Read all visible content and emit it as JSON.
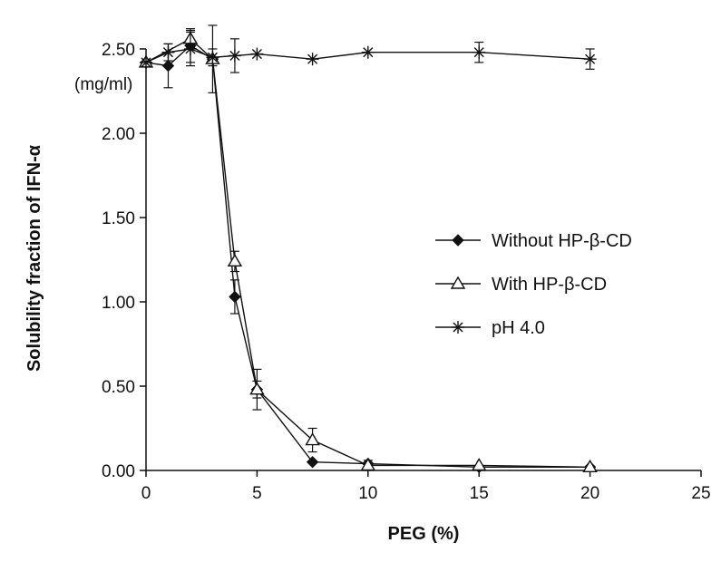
{
  "chart_data": {
    "type": "line",
    "title": "",
    "xlabel": "PEG (%)",
    "ylabel": "Solubility fraction of IFN-α",
    "y_unit_label": "(mg/ml)",
    "xlim": [
      0,
      25
    ],
    "ylim": [
      0,
      2.5
    ],
    "x_ticks": [
      "0",
      "5",
      "10",
      "15",
      "20",
      "25"
    ],
    "y_ticks": [
      "0.00",
      "0.50",
      "1.00",
      "1.50",
      "2.00",
      "2.50"
    ],
    "grid": false,
    "legend_position": "right",
    "series": [
      {
        "name": "Without HP-β-CD",
        "marker": "diamond-filled",
        "x": [
          0,
          1,
          2,
          3,
          4,
          5,
          7.5,
          10,
          15,
          20
        ],
        "y": [
          2.42,
          2.4,
          2.52,
          2.44,
          1.03,
          0.48,
          0.05,
          0.04,
          0.02,
          0.02
        ],
        "err": [
          0.0,
          0.13,
          0.1,
          0.0,
          0.1,
          0.05,
          0.0,
          0.0,
          0.0,
          0.0
        ]
      },
      {
        "name": "With HP-β-CD",
        "marker": "triangle-open",
        "x": [
          0,
          2,
          3,
          4,
          5,
          7.5,
          10,
          15,
          20
        ],
        "y": [
          2.42,
          2.56,
          2.44,
          1.24,
          0.48,
          0.18,
          0.03,
          0.03,
          0.02
        ],
        "err": [
          0.0,
          0.05,
          0.2,
          0.06,
          0.12,
          0.07,
          0.03,
          0.0,
          0.0
        ]
      },
      {
        "name": "pH 4.0",
        "marker": "asterisk",
        "x": [
          0,
          1,
          2,
          3,
          4,
          5,
          7.5,
          10,
          15,
          20
        ],
        "y": [
          2.42,
          2.48,
          2.5,
          2.45,
          2.46,
          2.47,
          2.44,
          2.48,
          2.48,
          2.44
        ],
        "err": [
          0.0,
          0.05,
          0.1,
          0.05,
          0.1,
          0.0,
          0.0,
          0.0,
          0.06,
          0.06
        ]
      }
    ]
  }
}
